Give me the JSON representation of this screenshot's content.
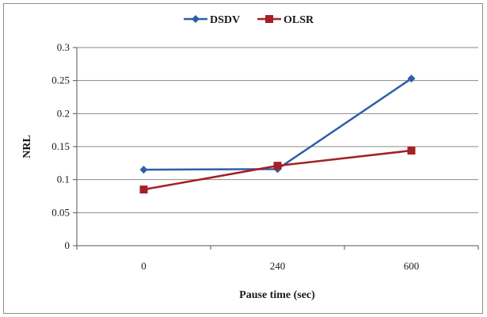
{
  "chart_data": {
    "type": "line",
    "categories": [
      "0",
      "240",
      "600"
    ],
    "series": [
      {
        "name": "DSDV",
        "values": [
          0.115,
          0.116,
          0.253
        ],
        "color": "#2e5fa8",
        "marker": "diamond"
      },
      {
        "name": "OLSR",
        "values": [
          0.085,
          0.121,
          0.144
        ],
        "color": "#a51f24",
        "marker": "square"
      }
    ],
    "xlabel": "Pause time (sec)",
    "ylabel": "NRL",
    "ylim": [
      0,
      0.3
    ],
    "yticks": [
      "0",
      "0.05",
      "0.1",
      "0.15",
      "0.2",
      "0.25",
      "0.3"
    ],
    "grid": true,
    "legend_position": "top-center"
  }
}
